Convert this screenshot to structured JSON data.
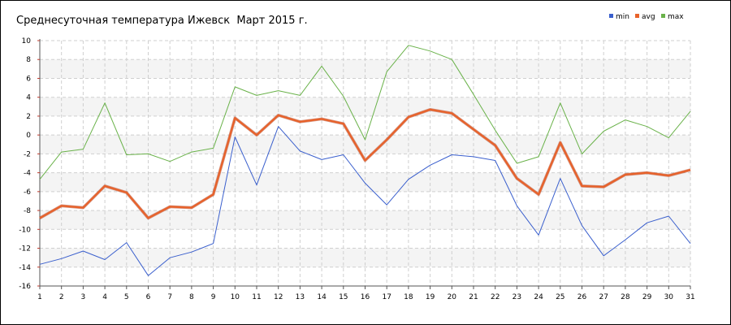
{
  "chart_data": {
    "type": "line",
    "title": "Среднесуточная температура Ижевск  Март 2015 г.",
    "xlabel": "",
    "ylabel": "",
    "x": [
      1,
      2,
      3,
      4,
      5,
      6,
      7,
      8,
      9,
      10,
      11,
      12,
      13,
      14,
      15,
      16,
      17,
      18,
      19,
      20,
      21,
      22,
      23,
      24,
      25,
      26,
      27,
      28,
      29,
      30,
      31
    ],
    "x_tick_labels": [
      "1",
      "2",
      "3",
      "4",
      "5",
      "6",
      "7",
      "8",
      "9",
      "10",
      "11",
      "12",
      "13",
      "14",
      "15",
      "16",
      "17",
      "18",
      "19",
      "20",
      "21",
      "22",
      "23",
      "24",
      "25",
      "26",
      "27",
      "28",
      "29",
      "30",
      "31"
    ],
    "ylim": [
      -16,
      10
    ],
    "y_ticks": [
      10,
      8,
      6,
      4,
      2,
      0,
      -2,
      -4,
      -6,
      -8,
      -10,
      -12,
      -14,
      -16
    ],
    "y_tick_labels": [
      "10",
      "8",
      "6",
      "4",
      "2",
      "0",
      "-2",
      "-4",
      "-6",
      "-8",
      "-10",
      "-12",
      "-14",
      "-16"
    ],
    "grid": true,
    "legend_position": "top-right",
    "series": [
      {
        "name": "min",
        "color": "#3a5fcd",
        "values": [
          -13.7,
          -13.1,
          -12.3,
          -13.2,
          -11.4,
          -14.9,
          -13.0,
          -12.4,
          -11.5,
          -0.2,
          -5.3,
          0.9,
          -1.7,
          -2.6,
          -2.1,
          -5.1,
          -7.4,
          -4.7,
          -3.2,
          -2.1,
          -2.3,
          -2.7,
          -7.5,
          -10.6,
          -4.6,
          -9.6,
          -12.8,
          -11.1,
          -9.3,
          -8.6,
          -11.5
        ]
      },
      {
        "name": "avg",
        "color": "#e8622a",
        "values": [
          -8.8,
          -7.5,
          -7.7,
          -5.4,
          -6.1,
          -8.8,
          -7.6,
          -7.7,
          -6.3,
          1.8,
          0.0,
          2.1,
          1.4,
          1.7,
          1.2,
          -2.7,
          -0.5,
          1.9,
          2.7,
          2.3,
          0.6,
          -1.1,
          -4.6,
          -6.3,
          -0.8,
          -5.4,
          -5.5,
          -4.2,
          -4.0,
          -4.3,
          -3.7
        ]
      },
      {
        "name": "max",
        "color": "#6ab24a",
        "values": [
          -4.7,
          -1.8,
          -1.5,
          3.4,
          -2.1,
          -2.0,
          -2.8,
          -1.8,
          -1.4,
          5.1,
          4.2,
          4.7,
          4.2,
          7.3,
          4.1,
          -0.5,
          6.7,
          9.5,
          8.9,
          8.0,
          4.3,
          0.5,
          -3.0,
          -2.3,
          3.4,
          -2.0,
          0.4,
          1.6,
          0.9,
          -0.3,
          2.5
        ]
      }
    ]
  }
}
